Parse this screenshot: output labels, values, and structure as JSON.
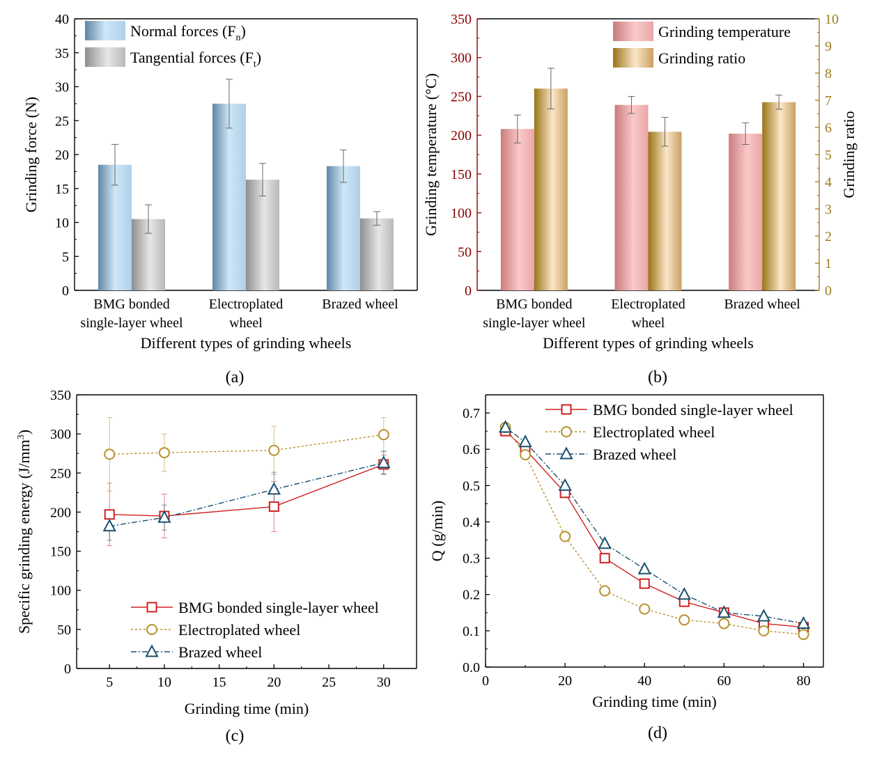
{
  "chart_data": [
    {
      "panel": "(a)",
      "type": "bar",
      "categories": [
        [
          "BMG bonded",
          "single-layer wheel"
        ],
        [
          "Electroplated",
          "wheel"
        ],
        [
          "Brazed wheel"
        ]
      ],
      "xlabel": "Different types of grinding wheels",
      "ylabel": "Grinding force (N)",
      "ylim": [
        0,
        40
      ],
      "yticks": [
        0,
        5,
        10,
        15,
        20,
        25,
        30,
        35,
        40
      ],
      "legend_position": "top-center",
      "series": [
        {
          "name": "Normal forces (F",
          "sub": "n",
          "close": ")",
          "values": [
            18.5,
            27.5,
            18.3
          ],
          "errors": [
            3.0,
            3.6,
            2.4
          ],
          "color": "#a9cbe3"
        },
        {
          "name": "Tangential forces (F",
          "sub": "t",
          "close": ")",
          "values": [
            10.5,
            16.3,
            10.6
          ],
          "errors": [
            2.1,
            2.4,
            1.0
          ],
          "color": "#c0c0c0"
        }
      ]
    },
    {
      "panel": "(b)",
      "type": "bar",
      "categories": [
        [
          "BMG bonded",
          "single-layer wheel"
        ],
        [
          "Electroplated",
          "wheel"
        ],
        [
          "Brazed wheel"
        ]
      ],
      "xlabel": "Different types of grinding wheels",
      "ylabel": "Grinding temperature (°C)",
      "ylabel_right": "Grinding ratio",
      "ylim": [
        0,
        350
      ],
      "yticks": [
        0,
        50,
        100,
        150,
        200,
        250,
        300,
        350
      ],
      "ylim_right": [
        0,
        10
      ],
      "yticks_right": [
        0,
        1,
        2,
        3,
        4,
        5,
        6,
        7,
        8,
        9,
        10
      ],
      "left_axis_color": "#8b0000",
      "right_axis_color": "#9c7c1c",
      "legend_position": "top-right",
      "series": [
        {
          "name": "Grinding temperature",
          "axis": "left",
          "values": [
            208,
            239,
            202
          ],
          "errors": [
            18,
            11,
            14
          ],
          "color": "#f0a8a8"
        },
        {
          "name": "Grinding ratio",
          "axis": "right",
          "values": [
            7.43,
            5.84,
            6.93
          ],
          "errors": [
            0.75,
            0.53,
            0.26
          ],
          "color": "#c9a467"
        }
      ]
    },
    {
      "panel": "(c)",
      "type": "line",
      "x": [
        5,
        10,
        20,
        30
      ],
      "xlabel": "Grinding time (min)",
      "ylabel": "Specific grinding energy (J/mm",
      "ylabel_sup": "3",
      "ylabel_close": ")",
      "xlim": [
        2,
        33
      ],
      "xticks": [
        5,
        10,
        15,
        20,
        25,
        30
      ],
      "ylim": [
        0,
        350
      ],
      "yticks": [
        0,
        50,
        100,
        150,
        200,
        250,
        300,
        350
      ],
      "legend_position": "bottom-right",
      "series": [
        {
          "name": "BMG bonded single-layer wheel",
          "marker": "square",
          "dash": "",
          "color": "#d02020",
          "values": [
            197,
            195,
            207,
            261
          ],
          "errors": [
            40,
            28,
            32,
            12
          ]
        },
        {
          "name": "Electroplated wheel",
          "marker": "circle",
          "dash": "3,3",
          "color": "#b8902c",
          "values": [
            274,
            276,
            279,
            299
          ],
          "errors": [
            47,
            24,
            31,
            22
          ]
        },
        {
          "name": "Brazed wheel",
          "marker": "triangle",
          "dash": "8,3,2,3",
          "color": "#1c5070",
          "values": [
            182,
            193,
            229,
            263
          ],
          "errors": [
            18,
            16,
            22,
            15
          ]
        }
      ]
    },
    {
      "panel": "(d)",
      "type": "line",
      "x": [
        5,
        10,
        20,
        30,
        40,
        50,
        60,
        70,
        80
      ],
      "xlabel": "Grinding time (min)",
      "ylabel": "Q (g/min)",
      "xlim": [
        0,
        85
      ],
      "xticks": [
        0,
        20,
        40,
        60,
        80
      ],
      "ylim": [
        0,
        0.75
      ],
      "yticks": [
        0.0,
        0.1,
        0.2,
        0.3,
        0.4,
        0.5,
        0.6,
        0.7
      ],
      "legend_position": "top-right",
      "series": [
        {
          "name": "BMG bonded single-layer wheel",
          "marker": "square",
          "dash": "",
          "color": "#d02020",
          "values": [
            0.65,
            0.6,
            0.48,
            0.3,
            0.23,
            0.18,
            0.15,
            0.12,
            0.11
          ]
        },
        {
          "name": "Electroplated wheel",
          "marker": "circle",
          "dash": "3,3",
          "color": "#b8902c",
          "values": [
            0.66,
            0.585,
            0.36,
            0.21,
            0.16,
            0.13,
            0.12,
            0.1,
            0.09
          ]
        },
        {
          "name": "Brazed wheel",
          "marker": "triangle",
          "dash": "8,3,2,3",
          "color": "#1c5070",
          "values": [
            0.66,
            0.62,
            0.5,
            0.34,
            0.27,
            0.2,
            0.15,
            0.14,
            0.12
          ]
        }
      ]
    }
  ]
}
